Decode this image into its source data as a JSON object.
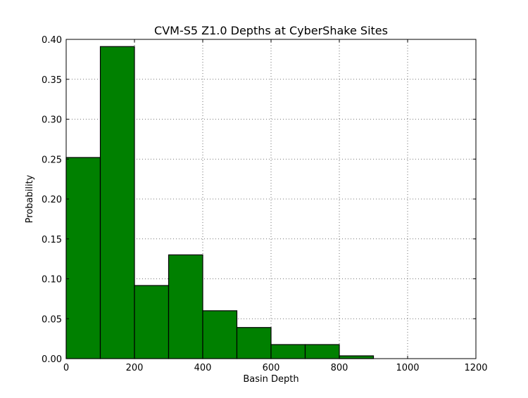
{
  "chart_data": {
    "type": "bar",
    "title": "CVM-S5 Z1.0 Depths at CyberShake Sites",
    "xlabel": "Basin Depth",
    "ylabel": "Probability",
    "bin_edges": [
      0,
      100,
      200,
      300,
      400,
      500,
      600,
      700,
      800,
      900
    ],
    "values": [
      0.252,
      0.391,
      0.0916,
      0.13,
      0.06,
      0.039,
      0.0176,
      0.0176,
      0.0035
    ],
    "xlim": [
      0,
      1200
    ],
    "ylim": [
      0,
      0.4
    ],
    "xticks": [
      "0",
      "200",
      "400",
      "600",
      "800",
      "1000",
      "1200"
    ],
    "yticks": [
      "0.00",
      "0.05",
      "0.10",
      "0.15",
      "0.20",
      "0.25",
      "0.30",
      "0.35",
      "0.40"
    ],
    "grid": true,
    "bar_color": "#008000",
    "edge_color": "#000000"
  }
}
